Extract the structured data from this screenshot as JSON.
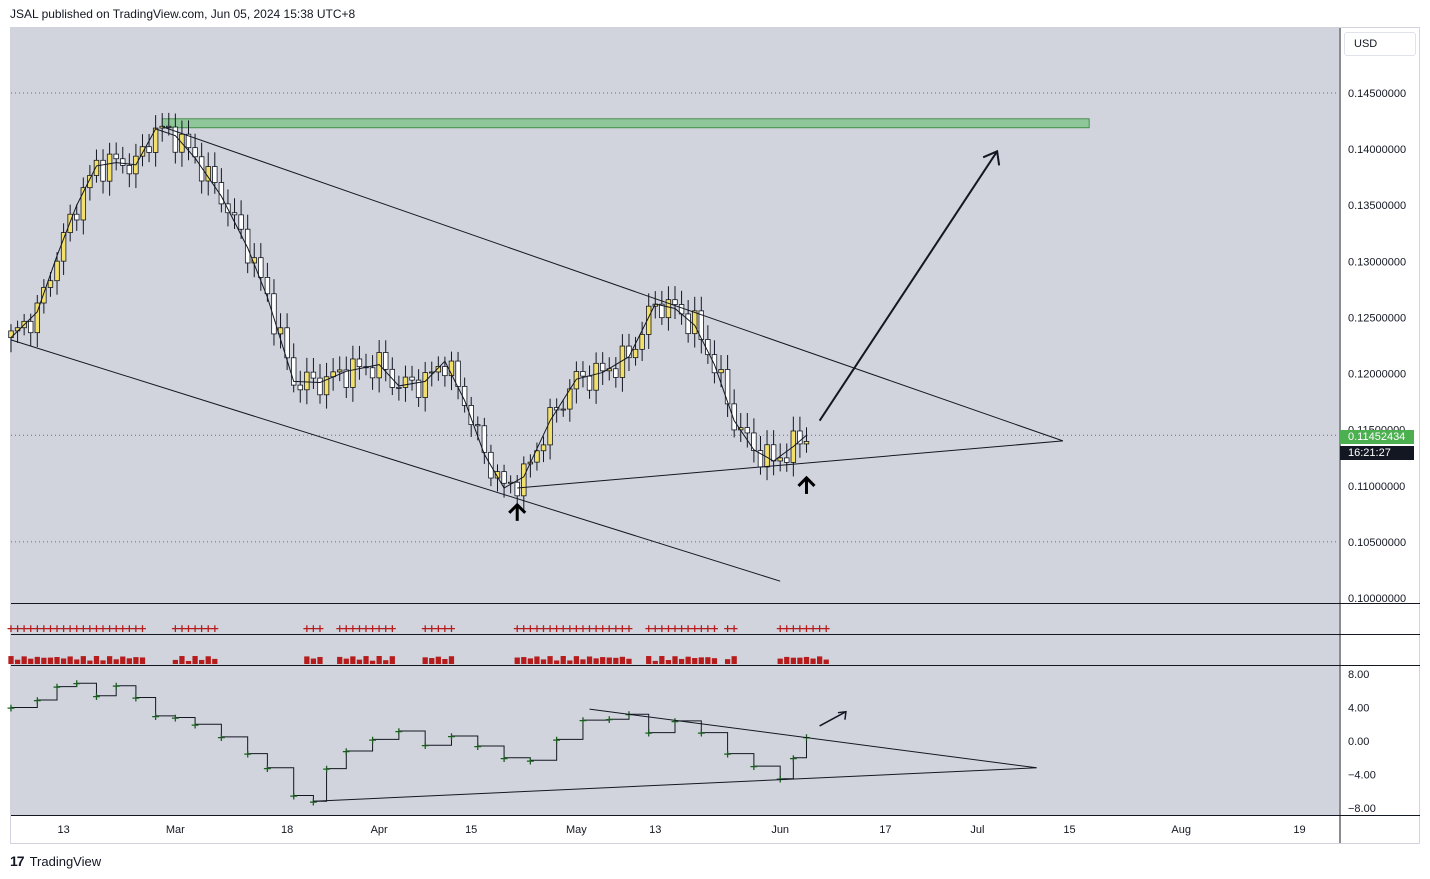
{
  "header": {
    "text": "JSAL published on TradingView.com, Jun 05, 2024 15:38 UTC+8"
  },
  "footer": {
    "logo": "17",
    "brand": "TradingView"
  },
  "currency": "USD",
  "last_price": "0.11452434",
  "countdown": "16:21:27",
  "colors": {
    "bg": "#d1d4dc",
    "up": "#f2e06b",
    "down": "#ffffff",
    "zone": "#8fc79a",
    "red": "#b71c1c",
    "green_cross": "#1b5e20",
    "price_tag": "#4caf50"
  },
  "chart_data": [
    {
      "type": "candlestick",
      "x_ticks": [
        "13",
        "Mar",
        "18",
        "Apr",
        "15",
        "May",
        "13",
        "Jun",
        "17",
        "Jul",
        "15",
        "Aug",
        "19"
      ],
      "y_ticks": [
        "0.14500000",
        "0.14000000",
        "0.13500000",
        "0.13000000",
        "0.12500000",
        "0.12000000",
        "0.11500000",
        "0.11000000",
        "0.10500000",
        "0.10000000"
      ],
      "ylim": [
        0.1,
        0.148
      ],
      "close_path": [
        [
          "2024-02-05",
          0.1232
        ],
        [
          "2024-02-09",
          0.1255
        ],
        [
          "2024-02-12",
          0.1305
        ],
        [
          "2024-02-15",
          0.135
        ],
        [
          "2024-02-18",
          0.1385
        ],
        [
          "2024-02-21",
          0.1388
        ],
        [
          "2024-02-24",
          0.1386
        ],
        [
          "2024-02-27",
          0.1418
        ],
        [
          "2024-03-01",
          0.1412
        ],
        [
          "2024-03-04",
          0.1392
        ],
        [
          "2024-03-08",
          0.1358
        ],
        [
          "2024-03-12",
          0.1312
        ],
        [
          "2024-03-15",
          0.1268
        ],
        [
          "2024-03-19",
          0.1193
        ],
        [
          "2024-03-23",
          0.1192
        ],
        [
          "2024-03-27",
          0.1202
        ],
        [
          "2024-04-01",
          0.1208
        ],
        [
          "2024-04-04",
          0.1189
        ],
        [
          "2024-04-08",
          0.1193
        ],
        [
          "2024-04-11",
          0.1211
        ],
        [
          "2024-04-14",
          0.1176
        ],
        [
          "2024-04-17",
          0.1128
        ],
        [
          "2024-04-20",
          0.1098
        ],
        [
          "2024-04-23",
          0.1108
        ],
        [
          "2024-04-27",
          0.1158
        ],
        [
          "2024-05-01",
          0.1195
        ],
        [
          "2024-05-05",
          0.1201
        ],
        [
          "2024-05-09",
          0.1215
        ],
        [
          "2024-05-13",
          0.1262
        ],
        [
          "2024-05-16",
          0.1258
        ],
        [
          "2024-05-19",
          0.1243
        ],
        [
          "2024-05-22",
          0.1208
        ],
        [
          "2024-05-25",
          0.1158
        ],
        [
          "2024-05-28",
          0.1132
        ],
        [
          "2024-05-31",
          0.1122
        ],
        [
          "2024-06-03",
          0.1135
        ],
        [
          "2024-06-05",
          0.1145
        ]
      ],
      "resistance_zone": {
        "from": "2024-02-28",
        "to": "2024-07-18",
        "low": 0.1419,
        "high": 0.1427
      },
      "trendlines": [
        {
          "from": [
            "2024-02-28",
            0.142
          ],
          "to": [
            "2024-07-14",
            0.114
          ]
        },
        {
          "from": [
            "2024-02-05",
            0.123
          ],
          "to": [
            "2024-06-01",
            0.1015
          ]
        },
        {
          "from": [
            "2024-04-22",
            0.1098
          ],
          "to": [
            "2024-07-14",
            0.114
          ]
        },
        {
          "from": [
            "2024-06-07",
            0.1158
          ],
          "to": [
            "2024-07-04",
            0.1398
          ]
        }
      ],
      "up_arrows": [
        [
          "2024-04-22",
          0.1083
        ],
        [
          "2024-06-05",
          0.1107
        ]
      ]
    },
    {
      "type": "scatter",
      "y_ticks": [
        "8.00",
        "4.00",
        "0.00",
        "−4.00",
        "−8.00"
      ],
      "ylim": [
        -10,
        9
      ],
      "points": [
        [
          "2024-02-05",
          4.0
        ],
        [
          "2024-02-09",
          4.9
        ],
        [
          "2024-02-12",
          6.5
        ],
        [
          "2024-02-15",
          6.9
        ],
        [
          "2024-02-18",
          5.4
        ],
        [
          "2024-02-21",
          6.6
        ],
        [
          "2024-02-24",
          5.2
        ],
        [
          "2024-02-27",
          3.0
        ],
        [
          "2024-03-01",
          2.8
        ],
        [
          "2024-03-04",
          2.0
        ],
        [
          "2024-03-08",
          0.5
        ],
        [
          "2024-03-12",
          -1.5
        ],
        [
          "2024-03-15",
          -3.2
        ],
        [
          "2024-03-19",
          -6.5
        ],
        [
          "2024-03-22",
          -7.2
        ],
        [
          "2024-03-24",
          -3.3
        ],
        [
          "2024-03-27",
          -1.2
        ],
        [
          "2024-03-31",
          0.2
        ],
        [
          "2024-04-04",
          1.2
        ],
        [
          "2024-04-08",
          -0.5
        ],
        [
          "2024-04-12",
          0.6
        ],
        [
          "2024-04-16",
          -0.6
        ],
        [
          "2024-04-20",
          -2.0
        ],
        [
          "2024-04-24",
          -2.3
        ],
        [
          "2024-04-28",
          0.2
        ],
        [
          "2024-05-02",
          2.5
        ],
        [
          "2024-05-06",
          2.6
        ],
        [
          "2024-05-09",
          3.2
        ],
        [
          "2024-05-12",
          1.0
        ],
        [
          "2024-05-16",
          2.4
        ],
        [
          "2024-05-20",
          1.0
        ],
        [
          "2024-05-24",
          -1.5
        ],
        [
          "2024-05-28",
          -3.0
        ],
        [
          "2024-06-01",
          -4.5
        ],
        [
          "2024-06-03",
          -2.0
        ],
        [
          "2024-06-05",
          0.5
        ]
      ],
      "trendlines": [
        {
          "from": [
            "2024-05-03",
            3.8
          ],
          "to": [
            "2024-07-10",
            -3.2
          ]
        },
        {
          "from": [
            "2024-03-22",
            -7.2
          ],
          "to": [
            "2024-07-10",
            -3.2
          ]
        }
      ],
      "arrow": {
        "from": [
          "2024-06-07",
          1.8
        ],
        "to": [
          "2024-06-11",
          3.5
        ]
      }
    }
  ]
}
